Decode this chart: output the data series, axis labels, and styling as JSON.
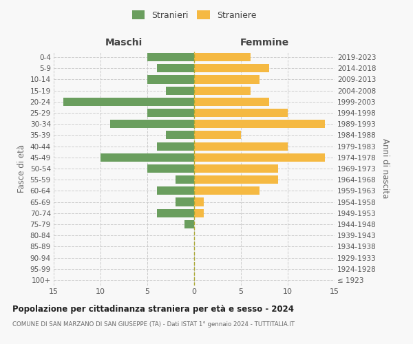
{
  "age_groups": [
    "100+",
    "95-99",
    "90-94",
    "85-89",
    "80-84",
    "75-79",
    "70-74",
    "65-69",
    "60-64",
    "55-59",
    "50-54",
    "45-49",
    "40-44",
    "35-39",
    "30-34",
    "25-29",
    "20-24",
    "15-19",
    "10-14",
    "5-9",
    "0-4"
  ],
  "birth_years": [
    "≤ 1923",
    "1924-1928",
    "1929-1933",
    "1934-1938",
    "1939-1943",
    "1944-1948",
    "1949-1953",
    "1954-1958",
    "1959-1963",
    "1964-1968",
    "1969-1973",
    "1974-1978",
    "1979-1983",
    "1984-1988",
    "1989-1993",
    "1994-1998",
    "1999-2003",
    "2004-2008",
    "2009-2013",
    "2014-2018",
    "2019-2023"
  ],
  "maschi": [
    0,
    0,
    0,
    0,
    0,
    1,
    4,
    2,
    4,
    2,
    5,
    10,
    4,
    3,
    9,
    5,
    14,
    3,
    5,
    4,
    5
  ],
  "femmine": [
    0,
    0,
    0,
    0,
    0,
    0,
    1,
    1,
    7,
    9,
    9,
    14,
    10,
    5,
    14,
    10,
    8,
    6,
    7,
    8,
    6
  ],
  "color_maschi": "#6a9e5e",
  "color_femmine": "#f5b942",
  "title": "Popolazione per cittadinanza straniera per età e sesso - 2024",
  "subtitle": "COMUNE DI SAN MARZANO DI SAN GIUSEPPE (TA) - Dati ISTAT 1° gennaio 2024 - TUTTITALIA.IT",
  "xlabel_left": "Maschi",
  "xlabel_right": "Femmine",
  "ylabel_left": "Fasce di età",
  "ylabel_right": "Anni di nascita",
  "xlim": 15,
  "bg_color": "#f8f8f8",
  "legend_maschi": "Stranieri",
  "legend_femmine": "Straniere",
  "grid_color": "#cccccc"
}
